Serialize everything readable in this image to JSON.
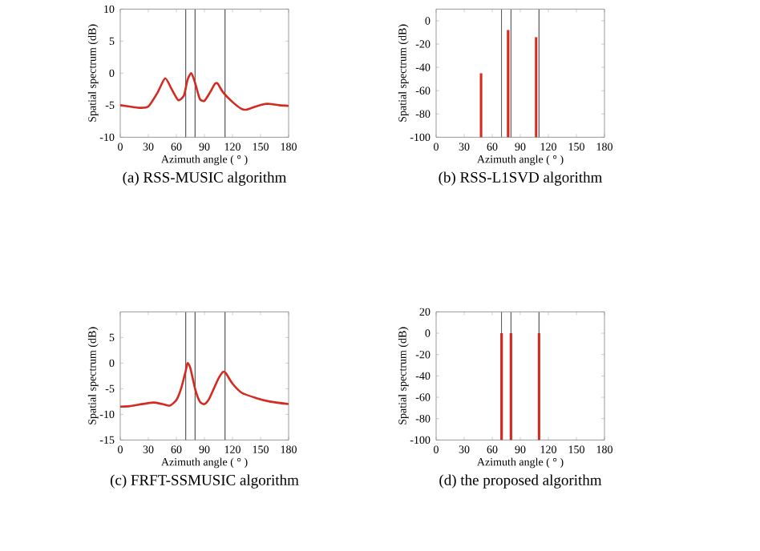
{
  "chart_data": [
    {
      "type": "line",
      "title": "(a) RSS-MUSIC algorithm",
      "xlabel": "Azimuth angle ( ° )",
      "ylabel": "Spatial spectrum (dB)",
      "xlim": [
        0,
        180
      ],
      "xticks": [
        0,
        30,
        60,
        90,
        120,
        150,
        180
      ],
      "ylim": [
        -10,
        10
      ],
      "yticks": [
        -10,
        -5,
        0,
        5,
        10
      ],
      "series": [
        {
          "color": "#d42a20",
          "x": [
            0,
            10,
            20,
            30,
            40,
            48,
            55,
            62,
            68,
            72,
            76,
            80,
            85,
            90,
            96,
            101,
            104,
            110,
            120,
            130,
            135,
            145,
            155,
            160,
            170,
            180
          ],
          "values": [
            -5,
            -5.2,
            -5.4,
            -5.2,
            -3,
            -0.8,
            -2.5,
            -4.2,
            -3.5,
            -1,
            0,
            -1.5,
            -4,
            -4.3,
            -3,
            -1.7,
            -1.6,
            -3,
            -4.5,
            -5.6,
            -5.7,
            -5.2,
            -4.8,
            -4.8,
            -5,
            -5.1
          ]
        }
      ],
      "ref_lines": [
        {
          "axis": "x",
          "value": 70,
          "color": "#555555"
        },
        {
          "axis": "x",
          "value": 80,
          "color": "#555555"
        },
        {
          "axis": "x",
          "value": 112,
          "color": "#555555"
        }
      ]
    },
    {
      "type": "bar",
      "title": "(b) RSS-L1SVD algorithm",
      "xlabel": "Azimuth angle ( ° )",
      "ylabel": "Spatial spectrum (dB)",
      "xlim": [
        0,
        180
      ],
      "xticks": [
        0,
        30,
        60,
        90,
        120,
        150,
        180
      ],
      "ylim": [
        -100,
        10
      ],
      "yticks": [
        -100,
        -80,
        -60,
        -40,
        -20,
        0
      ],
      "series": [
        {
          "color": "#d42a20",
          "x": [
            48,
            77,
            107
          ],
          "base": [
            -100,
            -100,
            -100
          ],
          "values": [
            55,
            92,
            86
          ]
        }
      ],
      "ref_lines": [
        {
          "axis": "x",
          "value": 70,
          "color": "#555555"
        },
        {
          "axis": "x",
          "value": 80,
          "color": "#555555"
        },
        {
          "axis": "x",
          "value": 110,
          "color": "#555555"
        }
      ]
    },
    {
      "type": "line",
      "title": "(c) FRFT-SSMUSIC algorithm",
      "xlabel": "Azimuth angle ( ° )",
      "ylabel": "Spatial spectrum (dB)",
      "xlim": [
        0,
        180
      ],
      "xticks": [
        0,
        30,
        60,
        90,
        120,
        150,
        180
      ],
      "ylim": [
        -15,
        10
      ],
      "yticks": [
        -15,
        -10,
        -5,
        0,
        5
      ],
      "series": [
        {
          "color": "#d42a20",
          "x": [
            0,
            10,
            20,
            35,
            45,
            53,
            60,
            65,
            70,
            72,
            75,
            80,
            85,
            90,
            95,
            100,
            105,
            110,
            113,
            120,
            130,
            145,
            160,
            180
          ],
          "values": [
            -8.5,
            -8.4,
            -8.1,
            -7.7,
            -8,
            -8.3,
            -7.2,
            -5,
            -1.5,
            0,
            -1,
            -5,
            -7.5,
            -8,
            -7,
            -5,
            -3,
            -1.7,
            -2,
            -4,
            -5.8,
            -6.8,
            -7.5,
            -8
          ]
        }
      ],
      "ref_lines": [
        {
          "axis": "x",
          "value": 70,
          "color": "#555555"
        },
        {
          "axis": "x",
          "value": 80,
          "color": "#555555"
        },
        {
          "axis": "x",
          "value": 112,
          "color": "#555555"
        }
      ]
    },
    {
      "type": "bar",
      "title": "(d) the proposed algorithm",
      "xlabel": "Azimuth angle ( ° )",
      "ylabel": "Spatial spectrum (dB)",
      "xlim": [
        0,
        180
      ],
      "xticks": [
        0,
        30,
        60,
        90,
        120,
        150,
        180
      ],
      "ylim": [
        -100,
        20
      ],
      "yticks": [
        -100,
        -80,
        -60,
        -40,
        -20,
        0,
        20
      ],
      "series": [
        {
          "color": "#d42a20",
          "x": [
            70,
            80,
            110
          ],
          "base": [
            -100,
            -100,
            -100
          ],
          "values": [
            100,
            100,
            100
          ]
        }
      ],
      "ref_lines": [
        {
          "axis": "x",
          "value": 70,
          "color": "#555555"
        },
        {
          "axis": "x",
          "value": 80,
          "color": "#555555"
        },
        {
          "axis": "x",
          "value": 110,
          "color": "#555555"
        }
      ]
    }
  ]
}
